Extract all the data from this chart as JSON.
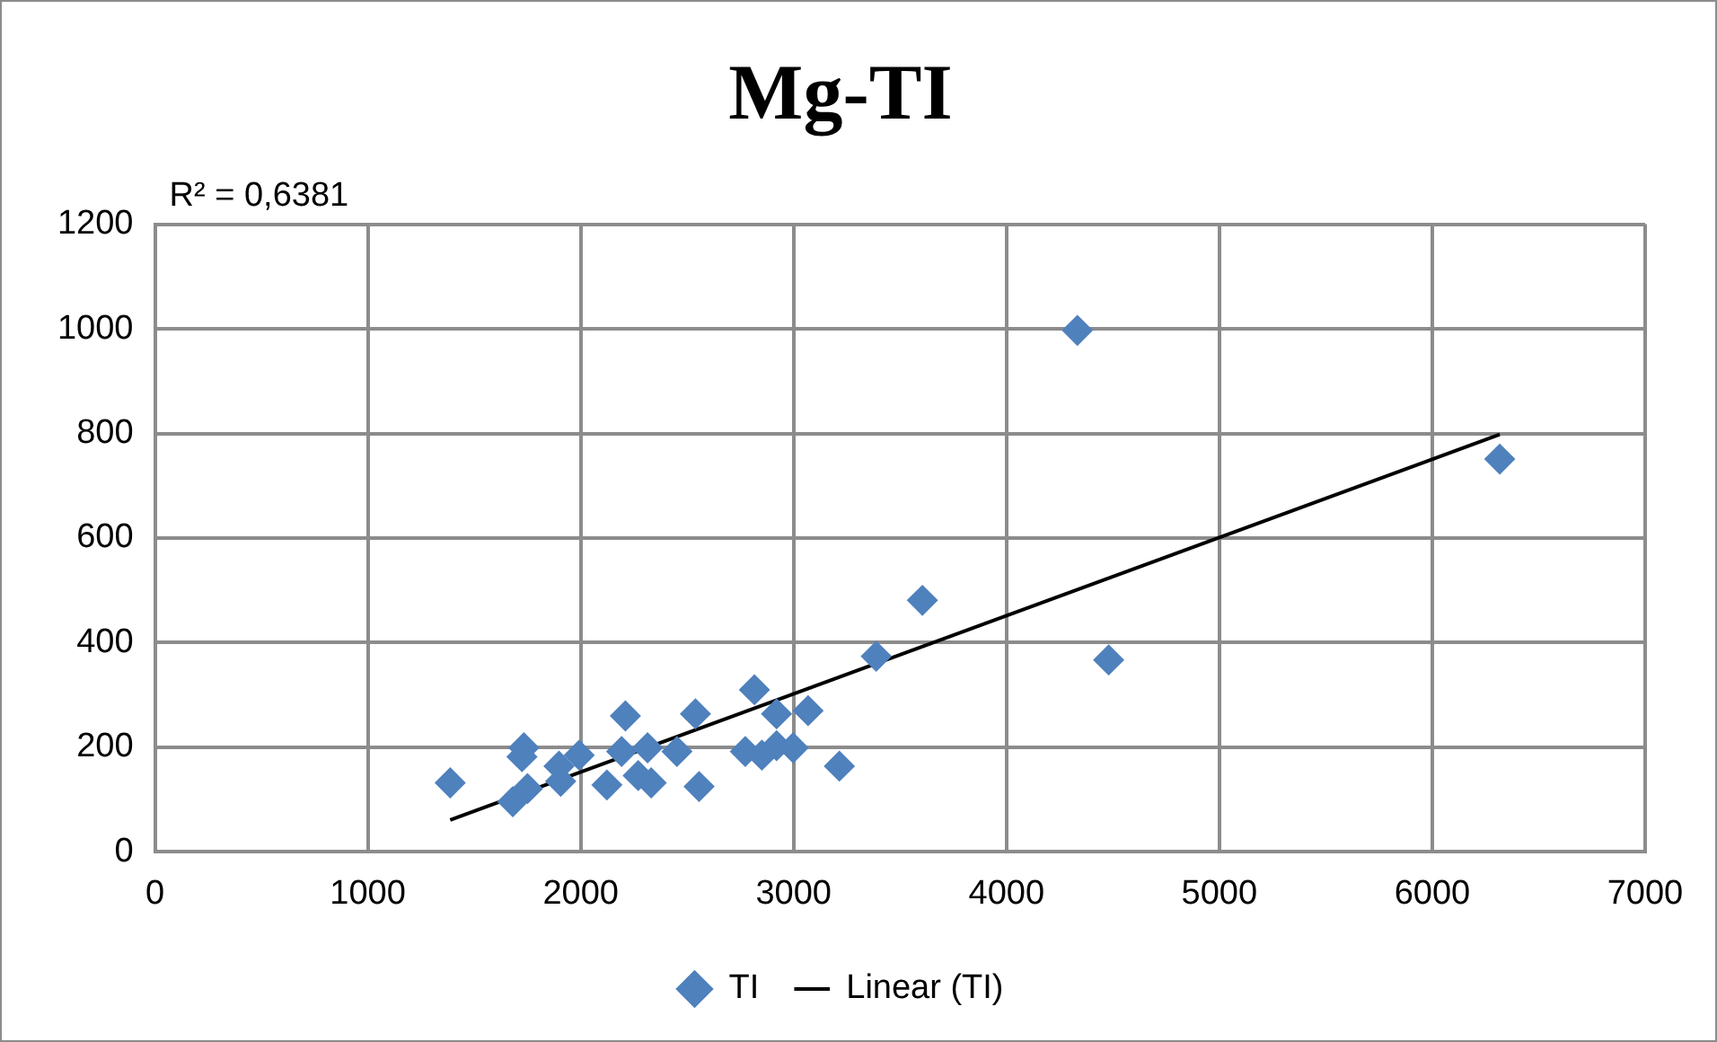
{
  "chart_data": {
    "type": "scatter",
    "title": "Mg-TI",
    "annotations": [
      "R² = 0,6381"
    ],
    "series": [
      {
        "name": "TI",
        "type": "scatter",
        "color": "#4f81bd",
        "marker": "diamond",
        "x": [
          1387,
          1681,
          1733,
          1724,
          1750,
          1898,
          1906,
          1993,
          2123,
          2210,
          2192,
          2270,
          2331,
          2314,
          2452,
          2539,
          2556,
          2773,
          2816,
          2851,
          2920,
          2920,
          2998,
          3068,
          3215,
          3388,
          3605,
          4480,
          4333,
          6317
        ],
        "values": [
          132,
          96,
          199,
          182,
          121,
          164,
          135,
          185,
          128,
          260,
          192,
          146,
          132,
          199,
          192,
          264,
          125,
          192,
          310,
          185,
          264,
          203,
          199,
          270,
          164,
          374,
          481,
          367,
          997,
          751
        ]
      },
      {
        "name": "Linear (TI)",
        "type": "line",
        "color": "#000000",
        "marker": "none",
        "line_style": "solid",
        "x": [
          1387,
          6317
        ],
        "values": [
          61,
          798
        ]
      }
    ],
    "xlim": [
      0,
      7000
    ],
    "xticks": [
      0,
      1000,
      2000,
      3000,
      4000,
      5000,
      6000,
      7000
    ],
    "ylim": [
      0,
      1200
    ],
    "yticks": [
      0,
      200,
      400,
      600,
      800,
      1000,
      1200
    ],
    "grid": true,
    "legend": "bottom"
  }
}
